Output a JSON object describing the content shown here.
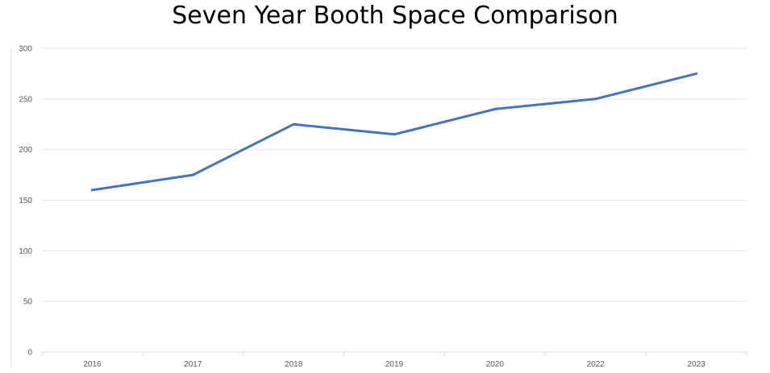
{
  "chart_data": {
    "type": "line",
    "title": "Seven Year Booth Space Comparison",
    "xlabel": "",
    "ylabel": "",
    "categories": [
      "2016",
      "2017",
      "2018",
      "2019",
      "2020",
      "2022",
      "2023"
    ],
    "series": [
      {
        "values": [
          160,
          175,
          225,
          215,
          240,
          250,
          275
        ],
        "color": "#4472c4"
      }
    ],
    "ylim": [
      0,
      300
    ],
    "yticks": [
      0,
      50,
      100,
      150,
      200,
      250,
      300
    ],
    "grid": true,
    "legend": "none"
  }
}
